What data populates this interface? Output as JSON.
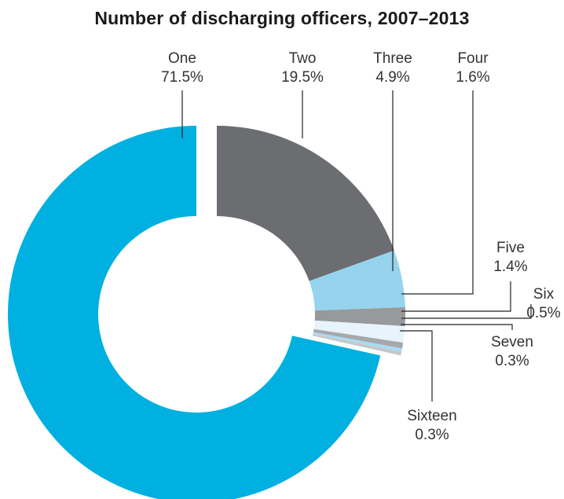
{
  "chart_data": {
    "type": "pie",
    "style": "donut",
    "title": "Number of discharging officers, 2007–2013",
    "categories": [
      "One",
      "Two",
      "Three",
      "Four",
      "Five",
      "Six",
      "Seven",
      "Sixteen"
    ],
    "values": [
      71.5,
      19.5,
      4.9,
      1.6,
      1.4,
      0.5,
      0.3,
      0.3
    ],
    "value_labels": [
      "71.5%",
      "19.5%",
      "4.9%",
      "1.6%",
      "1.4%",
      "0.5%",
      "0.3%",
      "0.3%"
    ],
    "colors": [
      "#00b0e0",
      "#6b6d70",
      "#96d3ee",
      "#97999c",
      "#e7f4fb",
      "#a6a8ab",
      "#a9dbf2",
      "#c5c7c9"
    ],
    "exploded": [
      "One"
    ]
  }
}
